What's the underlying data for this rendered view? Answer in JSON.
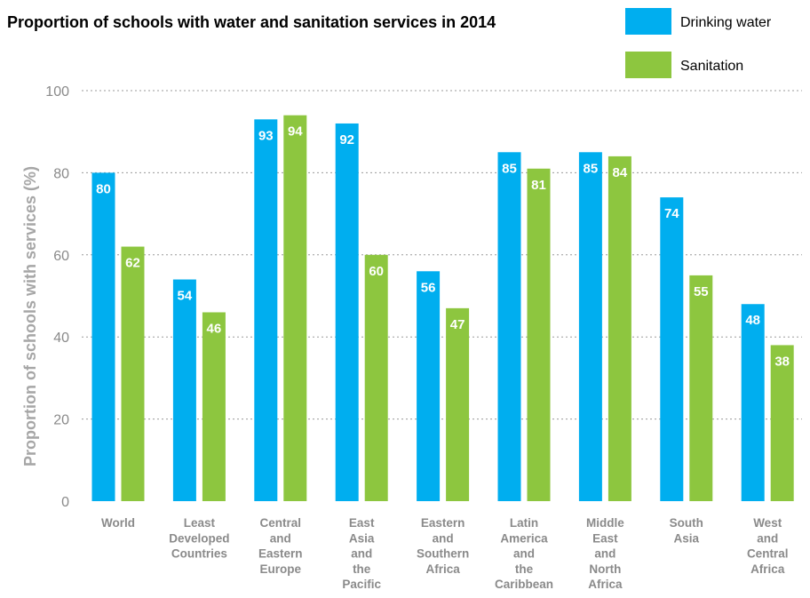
{
  "chart_data": {
    "type": "bar",
    "title": "Proportion of schools with water and sanitation services in 2014",
    "ylabel": "Proportion of schools with services (%)",
    "xlabel": "",
    "ylim": [
      0,
      100
    ],
    "yticks": [
      0,
      20,
      40,
      60,
      80,
      100
    ],
    "grid": true,
    "legend_position": "top-right",
    "categories": [
      "World",
      "Least Developed Countries",
      "Central and Eastern Europe",
      "East Asia and the Pacific",
      "Eastern and Southern Africa",
      "Latin America and the Caribbean",
      "Middle East and North Africa",
      "South Asia",
      "West and Central Africa"
    ],
    "category_lines": [
      [
        "World"
      ],
      [
        "Least",
        "Developed",
        "Countries"
      ],
      [
        "Central",
        "and",
        "Eastern",
        "Europe"
      ],
      [
        "East",
        "Asia",
        "and",
        "the",
        "Pacific"
      ],
      [
        "Eastern",
        "and",
        "Southern",
        "Africa"
      ],
      [
        "Latin",
        "America",
        "and",
        "the",
        "Caribbean"
      ],
      [
        "Middle",
        "East",
        "and",
        "North",
        "Africa"
      ],
      [
        "South",
        "Asia"
      ],
      [
        "West",
        "and",
        "Central",
        "Africa"
      ]
    ],
    "series": [
      {
        "name": "Drinking water",
        "color": "#00aeef",
        "values": [
          80,
          54,
          93,
          92,
          56,
          85,
          85,
          74,
          48
        ]
      },
      {
        "name": "Sanitation",
        "color": "#8dc63f",
        "values": [
          62,
          46,
          94,
          60,
          47,
          81,
          84,
          55,
          38
        ]
      }
    ]
  }
}
